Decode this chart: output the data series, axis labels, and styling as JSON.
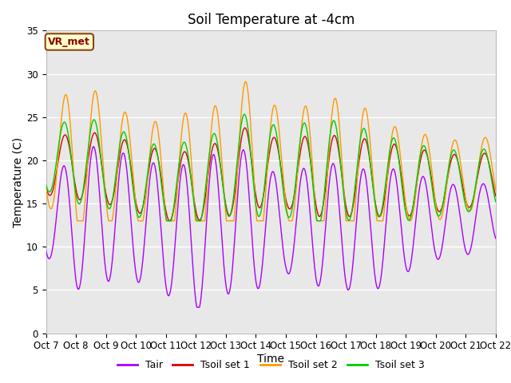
{
  "title": "Soil Temperature at -4cm",
  "xlabel": "Time",
  "ylabel": "Temperature (C)",
  "ylim": [
    0,
    35
  ],
  "annotation": "VR_met",
  "bg_color": "#e8e8e8",
  "fig_bg_color": "#ffffff",
  "line_colors": {
    "Tair": "#aa00ff",
    "Tsoil_set1": "#dd0000",
    "Tsoil_set2": "#ff9900",
    "Tsoil_set3": "#00cc00"
  },
  "legend_labels": [
    "Tair",
    "Tsoil set 1",
    "Tsoil set 2",
    "Tsoil set 3"
  ],
  "x_tick_labels": [
    "Oct 7",
    "Oct 8",
    "Oct 9",
    "Oct 10",
    "Oct 11",
    "Oct 12",
    "Oct 13",
    "Oct 14",
    "Oct 15",
    "Oct 16",
    "Oct 17",
    "Oct 18",
    "Oct 19",
    "Oct 20",
    "Oct 21",
    "Oct 22"
  ],
  "title_fontsize": 12,
  "axis_fontsize": 10,
  "tick_fontsize": 8.5
}
